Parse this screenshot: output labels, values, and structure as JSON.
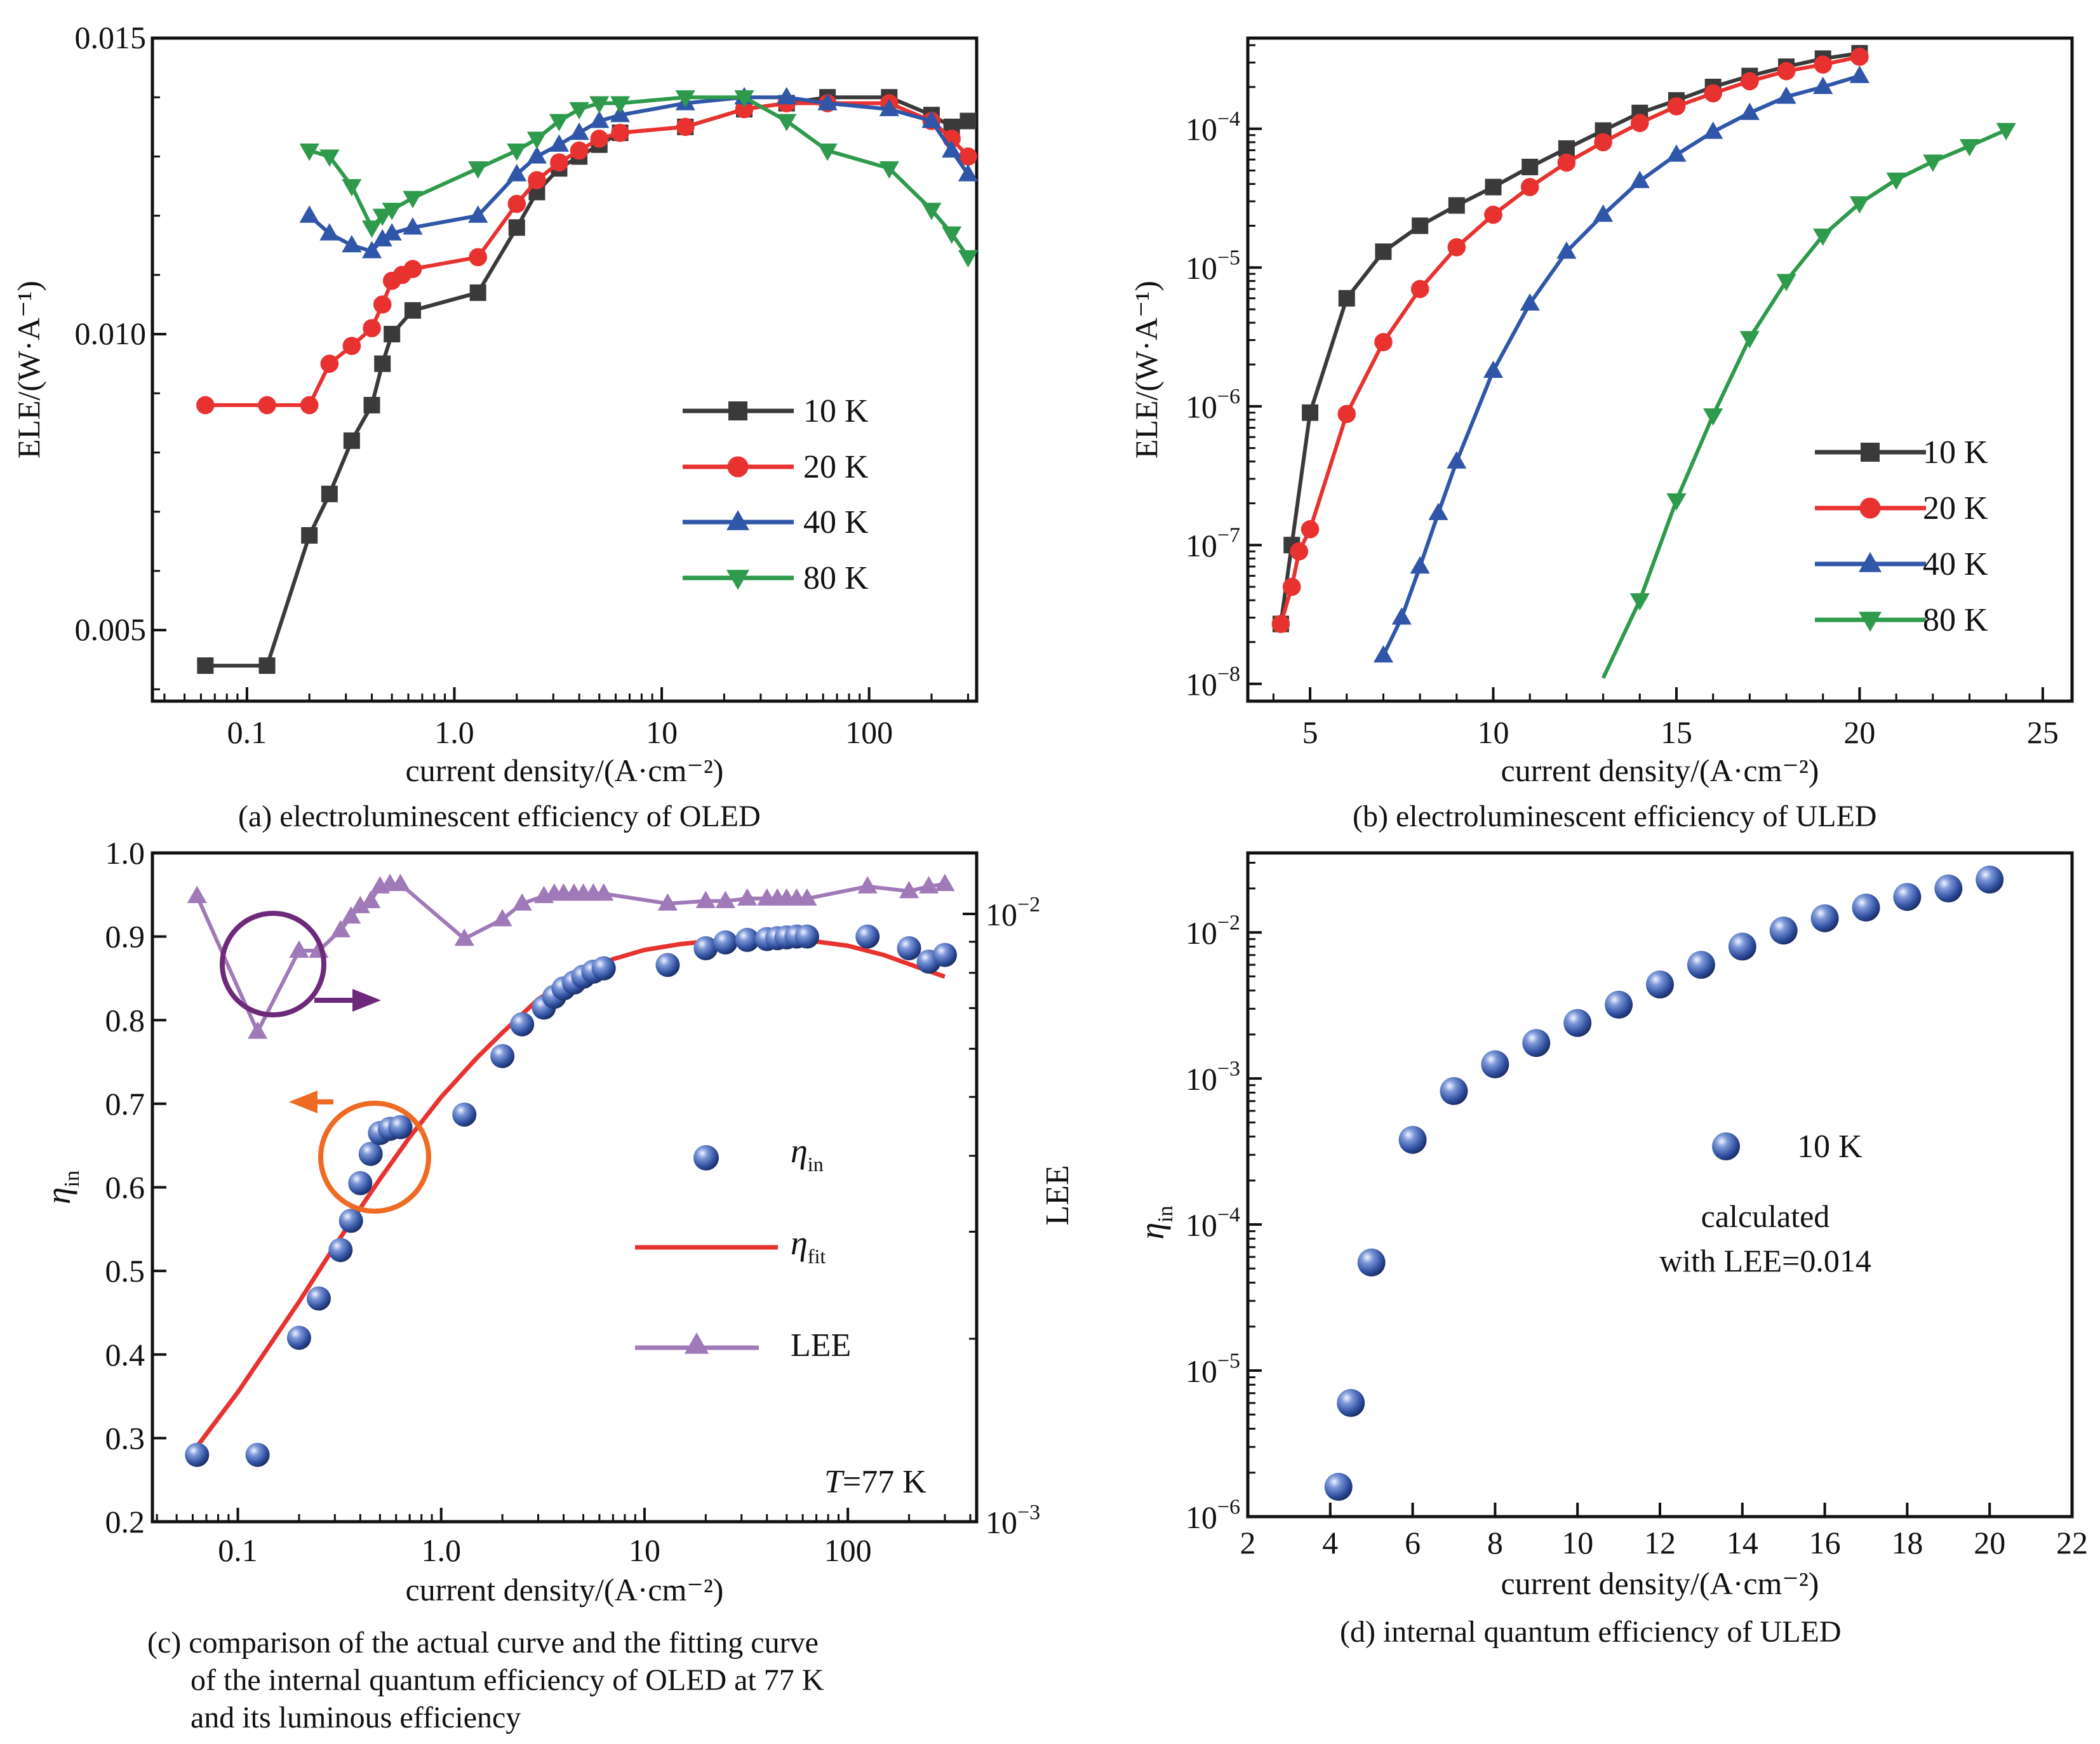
{
  "captions": {
    "a": "(a) electroluminescent efficiency of OLED",
    "b": "(b) electroluminescent efficiency of ULED",
    "c_line1": "(c) comparison of the actual curve and the fitting curve",
    "c_line2": "of the internal quantum efficiency of OLED at 77 K",
    "c_line3": "and its luminous efficiency",
    "d": "(d) internal quantum efficiency of ULED"
  },
  "colors": {
    "black": "#3a3a3a",
    "red": "#e8322f",
    "blue": "#2f56a8",
    "green": "#2e9a4b",
    "purple": "#a079b8",
    "dark_purple": "#6e2a7a",
    "orange": "#ef6a22",
    "sphere": "#3b5cb0"
  },
  "chart_data": [
    {
      "id": "a",
      "type": "line",
      "xscale": "log",
      "xlim": [
        0.035,
        330
      ],
      "ylim": [
        0.0038,
        0.015
      ],
      "xlabel": "current density/(A·cm⁻²)",
      "ylabel": "ELE/(W·A⁻¹)",
      "xticks": [
        {
          "v": 0.1,
          "label": "0.1"
        },
        {
          "v": 1,
          "label": "1.0"
        },
        {
          "v": 10,
          "label": "10"
        },
        {
          "v": 100,
          "label": "100"
        }
      ],
      "yticks": [
        {
          "v": 0.005,
          "label": "0.005"
        },
        {
          "v": 0.01,
          "label": "0.010"
        },
        {
          "v": 0.015,
          "label": "0.015"
        }
      ],
      "legend": {
        "position": "lower-right"
      },
      "series": [
        {
          "name": "10 K",
          "color_key": "black",
          "marker": "square",
          "x": [
            0.063,
            0.125,
            0.2,
            0.25,
            0.32,
            0.4,
            0.45,
            0.5,
            0.63,
            1.3,
            2.0,
            2.5,
            3.2,
            4.0,
            5.0,
            6.3,
            13,
            25,
            40,
            63,
            125,
            200,
            250,
            300
          ],
          "y": [
            0.0044,
            0.0044,
            0.0066,
            0.0073,
            0.0082,
            0.0088,
            0.0095,
            0.01,
            0.0104,
            0.0107,
            0.0118,
            0.0124,
            0.0128,
            0.013,
            0.0132,
            0.0134,
            0.0135,
            0.0138,
            0.0139,
            0.014,
            0.014,
            0.0137,
            0.0135,
            0.0136
          ]
        },
        {
          "name": "20 K",
          "color_key": "red",
          "marker": "circle",
          "x": [
            0.063,
            0.125,
            0.2,
            0.25,
            0.32,
            0.4,
            0.45,
            0.5,
            0.56,
            0.63,
            1.3,
            2.0,
            2.5,
            3.2,
            4.0,
            5.0,
            6.3,
            13,
            25,
            40,
            63,
            125,
            200,
            250,
            300
          ],
          "y": [
            0.0088,
            0.0088,
            0.0088,
            0.0095,
            0.0098,
            0.0101,
            0.0105,
            0.0109,
            0.011,
            0.0111,
            0.0113,
            0.0122,
            0.0126,
            0.0129,
            0.0131,
            0.0133,
            0.0134,
            0.0135,
            0.0138,
            0.0139,
            0.0139,
            0.0139,
            0.0136,
            0.0133,
            0.013
          ]
        },
        {
          "name": "40 K",
          "color_key": "blue",
          "marker": "triangle-up",
          "x": [
            0.2,
            0.25,
            0.32,
            0.4,
            0.45,
            0.5,
            0.63,
            1.3,
            2.0,
            2.5,
            3.2,
            4.0,
            5.0,
            6.3,
            13,
            25,
            40,
            63,
            125,
            200,
            250,
            300
          ],
          "y": [
            0.012,
            0.0117,
            0.0115,
            0.0114,
            0.0116,
            0.0117,
            0.0118,
            0.012,
            0.0127,
            0.013,
            0.0132,
            0.0134,
            0.0136,
            0.0137,
            0.0139,
            0.014,
            0.014,
            0.0139,
            0.0138,
            0.0136,
            0.0131,
            0.0127
          ]
        },
        {
          "name": "80 K",
          "color_key": "green",
          "marker": "triangle-down",
          "x": [
            0.2,
            0.25,
            0.32,
            0.4,
            0.45,
            0.5,
            0.63,
            1.3,
            2.0,
            2.5,
            3.2,
            4.0,
            5.0,
            6.3,
            13,
            25,
            40,
            63,
            125,
            200,
            250,
            300
          ],
          "y": [
            0.0131,
            0.013,
            0.0125,
            0.0118,
            0.012,
            0.0121,
            0.0123,
            0.0128,
            0.0131,
            0.0133,
            0.0136,
            0.0138,
            0.0139,
            0.0139,
            0.014,
            0.014,
            0.0136,
            0.0131,
            0.0128,
            0.0121,
            0.0117,
            0.0113
          ]
        }
      ]
    },
    {
      "id": "b",
      "type": "line",
      "yscale": "log",
      "xlim": [
        3.3,
        25.8
      ],
      "ylim": [
        7.5e-09,
        0.00045
      ],
      "xlabel": "current density/(A·cm⁻²)",
      "ylabel": "ELE/(W·A⁻¹)",
      "xticks": [
        {
          "v": 5,
          "label": "5"
        },
        {
          "v": 10,
          "label": "10"
        },
        {
          "v": 15,
          "label": "15"
        },
        {
          "v": 20,
          "label": "20"
        },
        {
          "v": 25,
          "label": "25"
        }
      ],
      "yticks": [
        {
          "v": 1e-08,
          "base": "10",
          "exp": "-8"
        },
        {
          "v": 1e-07,
          "base": "10",
          "exp": "-7"
        },
        {
          "v": 1e-06,
          "base": "10",
          "exp": "-6"
        },
        {
          "v": 1e-05,
          "base": "10",
          "exp": "-5"
        },
        {
          "v": 0.0001,
          "base": "10",
          "exp": "-4"
        }
      ],
      "legend": {
        "position": "lower-right"
      },
      "series": [
        {
          "name": "10 K",
          "color_key": "black",
          "marker": "square",
          "x": [
            4.2,
            4.5,
            5,
            6,
            7,
            8,
            9,
            10,
            11,
            12,
            13,
            14,
            15,
            16,
            17,
            18,
            19,
            20
          ],
          "y": [
            2.7e-08,
            1e-07,
            9e-07,
            6e-06,
            1.3e-05,
            2e-05,
            2.8e-05,
            3.8e-05,
            5.3e-05,
            7.2e-05,
            9.7e-05,
            0.00013,
            0.00016,
            0.0002,
            0.00024,
            0.00028,
            0.00032,
            0.00035
          ]
        },
        {
          "name": "20 K",
          "color_key": "red",
          "marker": "circle",
          "x": [
            4.2,
            4.5,
            4.7,
            5,
            6,
            7,
            8,
            9,
            10,
            11,
            12,
            13,
            14,
            15,
            16,
            17,
            18,
            19,
            20
          ],
          "y": [
            2.7e-08,
            5e-08,
            9e-08,
            1.3e-07,
            8.8e-07,
            2.9e-06,
            7e-06,
            1.4e-05,
            2.4e-05,
            3.8e-05,
            5.7e-05,
            8e-05,
            0.00011,
            0.000145,
            0.00018,
            0.00022,
            0.00026,
            0.00029,
            0.00033
          ]
        },
        {
          "name": "40 K",
          "color_key": "blue",
          "marker": "triangle-up",
          "x": [
            7,
            7.5,
            8,
            8.5,
            9,
            10,
            11,
            12,
            13,
            14,
            15,
            16,
            17,
            18,
            19,
            20
          ],
          "y": [
            1.6e-08,
            3e-08,
            7e-08,
            1.7e-07,
            4e-07,
            1.8e-06,
            5.5e-06,
            1.3e-05,
            2.4e-05,
            4.2e-05,
            6.5e-05,
            9.5e-05,
            0.00013,
            0.00017,
            0.0002,
            0.00024
          ]
        },
        {
          "name": "80 K",
          "color_key": "green",
          "marker": "triangle-down",
          "x": [
            13,
            14,
            15,
            16,
            17,
            18,
            19,
            20,
            21,
            22,
            23,
            24
          ],
          "y": [
            1.1e-08,
            4e-08,
            2.1e-07,
            8.6e-07,
            3.1e-06,
            8e-06,
            1.7e-05,
            2.9e-05,
            4.3e-05,
            5.8e-05,
            7.5e-05,
            9.8e-05
          ],
          "first_marker_hidden": true
        }
      ]
    },
    {
      "id": "c",
      "type": "scatter",
      "xscale": "log",
      "xlim": [
        0.038,
        430
      ],
      "ylim": [
        0.2,
        1.0
      ],
      "xlabel": "current density/(A·cm⁻²)",
      "ylabel": "η",
      "ylabel_sub": "in",
      "y2label": "LEE",
      "y2scale": "log",
      "y2lim": [
        0.001,
        0.0126
      ],
      "xticks": [
        {
          "v": 0.1,
          "label": "0.1"
        },
        {
          "v": 1,
          "label": "1.0"
        },
        {
          "v": 10,
          "label": "10"
        },
        {
          "v": 100,
          "label": "100"
        }
      ],
      "yticks": [
        {
          "v": 0.2,
          "label": "0.2"
        },
        {
          "v": 0.3,
          "label": "0.3"
        },
        {
          "v": 0.4,
          "label": "0.4"
        },
        {
          "v": 0.5,
          "label": "0.5"
        },
        {
          "v": 0.6,
          "label": "0.6"
        },
        {
          "v": 0.7,
          "label": "0.7"
        },
        {
          "v": 0.8,
          "label": "0.8"
        },
        {
          "v": 0.9,
          "label": "0.9"
        },
        {
          "v": 1.0,
          "label": "1.0"
        }
      ],
      "y2ticks": [
        {
          "v": 0.001,
          "base": "10",
          "exp": "-3"
        },
        {
          "v": 0.01,
          "base": "10",
          "exp": "-2"
        }
      ],
      "annotation": {
        "label": "T",
        "text": "=77 K"
      },
      "legend_labels": {
        "eta_in": "η",
        "eta_in_sub": "in",
        "eta_fit": "η",
        "eta_fit_sub": "fit",
        "lee": "LEE"
      },
      "series": [
        {
          "name": "η_in",
          "color_key": "sphere",
          "marker": "sphere",
          "x": [
            0.063,
            0.125,
            0.2,
            0.25,
            0.32,
            0.36,
            0.4,
            0.45,
            0.5,
            0.56,
            0.63,
            1.3,
            2.0,
            2.5,
            3.2,
            3.6,
            4.0,
            4.5,
            5.0,
            5.6,
            6.3,
            13,
            20,
            25,
            32,
            40,
            45,
            50,
            56,
            63,
            125,
            200,
            250,
            300
          ],
          "y": [
            0.28,
            0.28,
            0.42,
            0.467,
            0.525,
            0.56,
            0.605,
            0.64,
            0.665,
            0.67,
            0.672,
            0.687,
            0.757,
            0.795,
            0.815,
            0.828,
            0.838,
            0.845,
            0.852,
            0.858,
            0.862,
            0.866,
            0.886,
            0.893,
            0.896,
            0.897,
            0.898,
            0.899,
            0.9,
            0.9,
            0.9,
            0.886,
            0.87,
            0.878
          ]
        },
        {
          "name": "η_fit",
          "color_key": "red",
          "marker": "none",
          "x": [
            0.063,
            0.1,
            0.2,
            0.3,
            0.5,
            0.7,
            1.0,
            1.5,
            2.0,
            3.0,
            5.0,
            7.0,
            10,
            15,
            20,
            30,
            50,
            70,
            100,
            150,
            200,
            300
          ],
          "y": [
            0.29,
            0.355,
            0.463,
            0.53,
            0.61,
            0.66,
            0.708,
            0.755,
            0.785,
            0.825,
            0.858,
            0.873,
            0.884,
            0.891,
            0.894,
            0.896,
            0.896,
            0.894,
            0.889,
            0.878,
            0.867,
            0.852
          ]
        },
        {
          "name": "LEE",
          "color_key": "purple",
          "marker": "triangle-up",
          "axis": "y2",
          "x": [
            0.063,
            0.125,
            0.2,
            0.25,
            0.32,
            0.36,
            0.4,
            0.45,
            0.5,
            0.56,
            0.63,
            1.3,
            2.0,
            2.5,
            3.2,
            3.6,
            4.0,
            4.5,
            5.0,
            5.6,
            6.3,
            13,
            20,
            25,
            32,
            40,
            45,
            50,
            56,
            63,
            125,
            200,
            250,
            300
          ],
          "y": [
            0.0107,
            0.0064,
            0.0087,
            0.0087,
            0.0094,
            0.0099,
            0.0103,
            0.0105,
            0.0111,
            0.0112,
            0.0112,
            0.0091,
            0.0098,
            0.0104,
            0.0107,
            0.0108,
            0.0108,
            0.0108,
            0.0108,
            0.0108,
            0.0108,
            0.0104,
            0.0105,
            0.0105,
            0.0106,
            0.0106,
            0.0106,
            0.0106,
            0.0106,
            0.0106,
            0.0111,
            0.0109,
            0.0111,
            0.0112
          ]
        }
      ]
    },
    {
      "id": "d",
      "type": "scatter",
      "yscale": "log",
      "xlim": [
        2,
        22
      ],
      "ylim": [
        1e-06,
        0.035
      ],
      "xlabel": "current density/(A·cm⁻²)",
      "ylabel": "η",
      "ylabel_sub": "in",
      "xticks": [
        {
          "v": 2,
          "label": "2"
        },
        {
          "v": 4,
          "label": "4"
        },
        {
          "v": 6,
          "label": "6"
        },
        {
          "v": 8,
          "label": "8"
        },
        {
          "v": 10,
          "label": "10"
        },
        {
          "v": 12,
          "label": "12"
        },
        {
          "v": 14,
          "label": "14"
        },
        {
          "v": 16,
          "label": "16"
        },
        {
          "v": 18,
          "label": "18"
        },
        {
          "v": 20,
          "label": "20"
        },
        {
          "v": 22,
          "label": "22"
        }
      ],
      "yticks": [
        {
          "v": 1e-06,
          "base": "10",
          "exp": "-6"
        },
        {
          "v": 1e-05,
          "base": "10",
          "exp": "-5"
        },
        {
          "v": 0.0001,
          "base": "10",
          "exp": "-4"
        },
        {
          "v": 0.001,
          "base": "10",
          "exp": "-3"
        },
        {
          "v": 0.01,
          "base": "10",
          "exp": "-2"
        }
      ],
      "legend_label": "10 K",
      "note_line1": "calculated",
      "note_line2": "with LEE=0.014",
      "series": [
        {
          "name": "10 K",
          "color_key": "sphere",
          "marker": "sphere",
          "x": [
            4.2,
            4.5,
            5,
            6,
            7,
            8,
            9,
            10,
            11,
            12,
            13,
            14,
            15,
            16,
            17,
            18,
            19,
            20
          ],
          "y": [
            1.6e-06,
            6e-06,
            5.5e-05,
            0.00038,
            0.00082,
            0.00125,
            0.00175,
            0.0024,
            0.0032,
            0.0044,
            0.006,
            0.008,
            0.0103,
            0.0125,
            0.0148,
            0.0175,
            0.02,
            0.023
          ]
        }
      ]
    }
  ]
}
